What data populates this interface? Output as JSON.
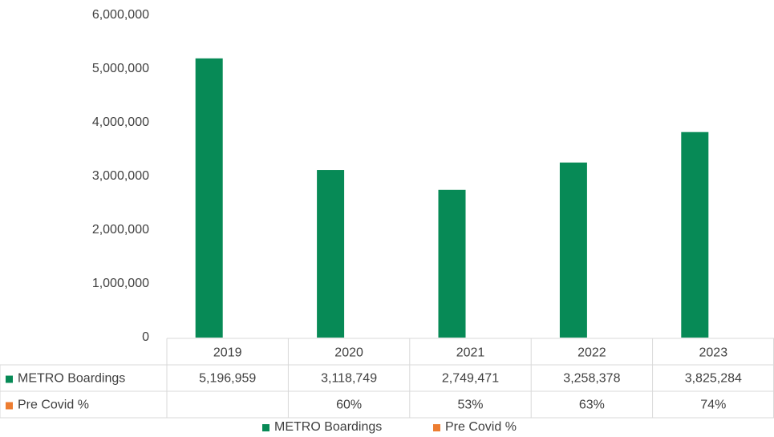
{
  "chart_data": {
    "type": "bar",
    "categories": [
      "2019",
      "2020",
      "2021",
      "2022",
      "2023"
    ],
    "series": [
      {
        "name": "METRO Boardings",
        "color": "#078a56",
        "values": [
          5196959,
          3118749,
          2749471,
          3258378,
          3825284
        ],
        "value_labels": [
          "5,196,959",
          "3,118,749",
          "2,749,471",
          "3,258,378",
          "3,825,284"
        ]
      },
      {
        "name": "Pre Covid %",
        "color": "#ed7d31",
        "values": [
          null,
          60,
          53,
          63,
          74
        ],
        "value_labels": [
          null,
          "60%",
          "53%",
          "63%",
          "74%"
        ]
      }
    ],
    "ylim": [
      0,
      6000000
    ],
    "yticks": [
      0,
      {
        "value": 1000000,
        "label": "1,000,000"
      },
      {
        "value": 2000000,
        "label": "2,000,000"
      },
      {
        "value": 3000000,
        "label": "3,000,000"
      },
      {
        "value": 4000000,
        "label": "4,000,000"
      },
      {
        "value": 5000000,
        "label": "5,000,000"
      },
      {
        "value": 6000000,
        "label": "6,000,000"
      }
    ],
    "grid": false,
    "data_table": true,
    "legend": "bottom"
  }
}
